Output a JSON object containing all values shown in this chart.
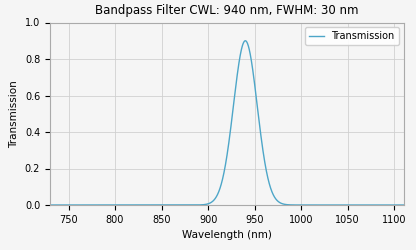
{
  "title": "Bandpass Filter CWL: 940 nm, FWHM: 30 nm",
  "xlabel": "Wavelength (nm)",
  "ylabel": "Transmission",
  "cwl": 940,
  "fwhm": 30,
  "peak_transmission": 0.9,
  "x_min": 730,
  "x_max": 1110,
  "y_min": 0.0,
  "y_max": 1.0,
  "xticks": [
    750,
    800,
    850,
    900,
    950,
    1000,
    1050,
    1100
  ],
  "yticks": [
    0.0,
    0.2,
    0.4,
    0.6,
    0.8,
    1.0
  ],
  "line_color": "#4da6c8",
  "legend_label": "Transmission",
  "grid_color": "#d0d0d0",
  "background_color": "#f5f5f5",
  "title_fontsize": 8.5,
  "label_fontsize": 7.5,
  "tick_fontsize": 7,
  "legend_fontsize": 7
}
